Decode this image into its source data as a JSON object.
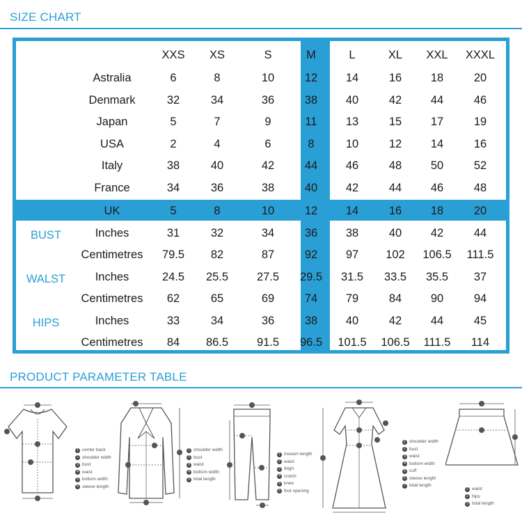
{
  "size_chart_title": "SIZE CHART",
  "parameter_table_title": "PRODUCT PARAMETER TABLE",
  "sizes": [
    "XXS",
    "XS",
    "S",
    "M",
    "L",
    "XL",
    "XXL",
    "XXXL"
  ],
  "highlight_size": "M",
  "highlight_region": "UK",
  "accent_color": "#2a9fd6",
  "rows": [
    {
      "group": "",
      "label": "Astralia",
      "values": [
        "6",
        "8",
        "10",
        "12",
        "14",
        "16",
        "18",
        "20"
      ]
    },
    {
      "group": "",
      "label": "Denmark",
      "values": [
        "32",
        "34",
        "36",
        "38",
        "40",
        "42",
        "44",
        "46"
      ]
    },
    {
      "group": "",
      "label": "Japan",
      "values": [
        "5",
        "7",
        "9",
        "11",
        "13",
        "15",
        "17",
        "19"
      ]
    },
    {
      "group": "",
      "label": "USA",
      "values": [
        "2",
        "4",
        "6",
        "8",
        "10",
        "12",
        "14",
        "16"
      ]
    },
    {
      "group": "",
      "label": "Italy",
      "values": [
        "38",
        "40",
        "42",
        "44",
        "46",
        "48",
        "50",
        "52"
      ]
    },
    {
      "group": "",
      "label": "France",
      "values": [
        "34",
        "36",
        "38",
        "40",
        "42",
        "44",
        "46",
        "48"
      ]
    },
    {
      "group": "",
      "label": "UK",
      "values": [
        "5",
        "8",
        "10",
        "12",
        "14",
        "16",
        "18",
        "20"
      ]
    },
    {
      "group": "BUST",
      "label": "Inches",
      "values": [
        "31",
        "32",
        "34",
        "36",
        "38",
        "40",
        "42",
        "44"
      ]
    },
    {
      "group": "",
      "label": "Centimetres",
      "values": [
        "79.5",
        "82",
        "87",
        "92",
        "97",
        "102",
        "106.5",
        "111.5"
      ]
    },
    {
      "group": "WALST",
      "label": "Inches",
      "values": [
        "24.5",
        "25.5",
        "27.5",
        "29.5",
        "31.5",
        "33.5",
        "35.5",
        "37"
      ]
    },
    {
      "group": "",
      "label": "Centimetres",
      "values": [
        "62",
        "65",
        "69",
        "74",
        "79",
        "84",
        "90",
        "94"
      ]
    },
    {
      "group": "HIPS",
      "label": "Inches",
      "values": [
        "33",
        "34",
        "36",
        "38",
        "40",
        "42",
        "44",
        "45"
      ]
    },
    {
      "group": "",
      "label": "Centimetres",
      "values": [
        "84",
        "86.5",
        "91.5",
        "96.5",
        "101.5",
        "106.5",
        "111.5",
        "114"
      ]
    }
  ],
  "diagrams": [
    {
      "name": "top",
      "legend": [
        {
          "n": "1",
          "label": "center back"
        },
        {
          "n": "2",
          "label": "shoulder width"
        },
        {
          "n": "3",
          "label": "bust"
        },
        {
          "n": "4",
          "label": "waist"
        },
        {
          "n": "5",
          "label": "bottom width"
        },
        {
          "n": "6",
          "label": "sleeve length"
        }
      ]
    },
    {
      "name": "blouse",
      "legend": [
        {
          "n": "1",
          "label": "shoulder width"
        },
        {
          "n": "2",
          "label": "bust"
        },
        {
          "n": "3",
          "label": "waist"
        },
        {
          "n": "4",
          "label": "bottom width"
        },
        {
          "n": "5",
          "label": "total length"
        }
      ]
    },
    {
      "name": "pants",
      "legend": [
        {
          "n": "1",
          "label": "inseam length"
        },
        {
          "n": "2",
          "label": "waist"
        },
        {
          "n": "3",
          "label": "thigh"
        },
        {
          "n": "4",
          "label": "crotch"
        },
        {
          "n": "5",
          "label": "knee"
        },
        {
          "n": "6",
          "label": "foot opening"
        }
      ]
    },
    {
      "name": "dress",
      "legend": [
        {
          "n": "1",
          "label": "shoulder width"
        },
        {
          "n": "2",
          "label": "bust"
        },
        {
          "n": "3",
          "label": "waist"
        },
        {
          "n": "4",
          "label": "bottom width"
        },
        {
          "n": "5",
          "label": "cuff"
        },
        {
          "n": "6",
          "label": "sleeve length"
        },
        {
          "n": "7",
          "label": "total length"
        }
      ]
    },
    {
      "name": "skirt",
      "legend": [
        {
          "n": "1",
          "label": "waist"
        },
        {
          "n": "2",
          "label": "hips"
        },
        {
          "n": "3",
          "label": "total length"
        }
      ]
    }
  ]
}
